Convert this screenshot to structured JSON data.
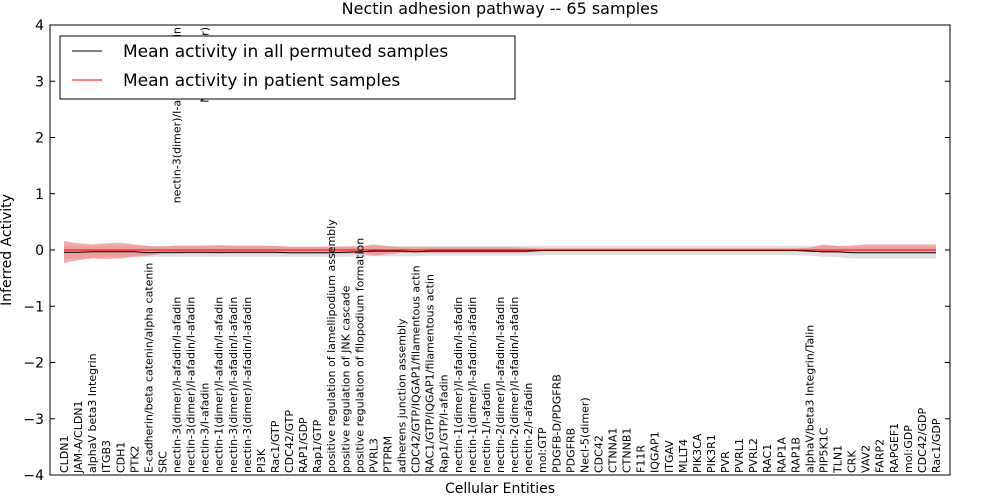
{
  "chart_data": {
    "type": "line",
    "title": "Nectin adhesion pathway -- 65 samples",
    "xlabel": "Cellular Entities",
    "ylabel": "Inferred Activity",
    "ylim": [
      -4,
      4
    ],
    "yticks": [
      -4,
      -3,
      -2,
      -1,
      0,
      1,
      2,
      3,
      4
    ],
    "ytick_labels": [
      "−4",
      "−3",
      "−2",
      "−1",
      "0",
      "1",
      "2",
      "3",
      "4"
    ],
    "legend_position": "top-left",
    "categories": [
      "CLDN1",
      "JAM-A/CLDN1",
      "alphaV beta3 Integrin",
      "ITGB3",
      "CDH1",
      "PTK2",
      "E-cadherin/beta catenin/alpha catenin",
      "SRC",
      "nectin-3(dimer)/I-afadin/I-afadin",
      "nectin-3(dimer)/I-afadin/I-afadin",
      "nectin-3/I-afadin",
      "nectin-1(dimer)/I-afadin/I-afadin",
      "nectin-3(dimer)/I-afadin/I-afadin",
      "nectin-3(dimer)/I-afadin/I-afadin",
      "PI3K",
      "Rac1/GTP",
      "CDC42/GTP",
      "RAP1/GDP",
      "Rap1/GTP",
      "positive regulation of lamellipodium assembly",
      "positive regulation of JNK cascade",
      "positive regulation of filopodium formation",
      "PVRL3",
      "PTPRM",
      "adherens junction assembly",
      "CDC42/GTP/IQGAP1/filamentous actin",
      "RAC1/GTP/IQGAP1/filamentous actin",
      "Rap1/GTP/I-afadin",
      "nectin-1(dimer)/I-afadin/I-afadin",
      "nectin-1(dimer)/I-afadin/I-afadin",
      "nectin-1/I-afadin",
      "nectin-2(dimer)/I-afadin/I-afadin",
      "nectin-2(dimer)/I-afadin/I-afadin",
      "nectin-2/I-afadin",
      "mol:GTP",
      "PDGFB-D/PDGFRB",
      "PDGFRB",
      "Necl-5(dimer)",
      "CDC42",
      "CTNNA1",
      "CTNNB1",
      "F11R",
      "IQGAP1",
      "ITGAV",
      "MLLT4",
      "PIK3CA",
      "PIK3R1",
      "PVR",
      "PVRL1",
      "PVRL2",
      "RAC1",
      "RAP1A",
      "RAP1B",
      "alphaV/beta3 Integrin/Talin",
      "PIP5K1C",
      "TLN1",
      "CRK",
      "VAV2",
      "FARP2",
      "RAPGEF1",
      "mol:GDP",
      "CDC42/GDP",
      "Rac1/GDP"
    ],
    "top_labels": [
      "nectin-3(dimer)/I-afadin/I-afadin",
      "Necl-5(dimer)"
    ],
    "series": [
      {
        "name": "Mean activity in all permuted samples",
        "color": "#000000",
        "fill": "#cccccc",
        "values": [
          -0.04,
          -0.04,
          -0.03,
          -0.03,
          -0.03,
          -0.03,
          -0.05,
          -0.04,
          -0.04,
          -0.04,
          -0.04,
          -0.04,
          -0.04,
          -0.04,
          -0.04,
          -0.04,
          -0.05,
          -0.05,
          -0.05,
          -0.05,
          -0.04,
          -0.03,
          -0.02,
          -0.02,
          -0.02,
          -0.03,
          -0.02,
          -0.02,
          -0.02,
          -0.02,
          -0.02,
          -0.02,
          -0.02,
          -0.02,
          -0.01,
          -0.01,
          -0.01,
          -0.01,
          -0.01,
          -0.01,
          -0.01,
          -0.01,
          -0.01,
          -0.01,
          -0.01,
          -0.01,
          -0.01,
          -0.01,
          -0.01,
          -0.01,
          -0.01,
          -0.01,
          -0.01,
          -0.02,
          -0.03,
          -0.03,
          -0.05,
          -0.05,
          -0.05,
          -0.05,
          -0.05,
          -0.05,
          -0.05
        ],
        "lower": [
          -0.15,
          -0.16,
          -0.14,
          -0.12,
          -0.12,
          -0.12,
          -0.13,
          -0.12,
          -0.12,
          -0.12,
          -0.12,
          -0.12,
          -0.12,
          -0.12,
          -0.12,
          -0.12,
          -0.12,
          -0.12,
          -0.12,
          -0.12,
          -0.12,
          -0.11,
          -0.11,
          -0.11,
          -0.11,
          -0.11,
          -0.1,
          -0.1,
          -0.1,
          -0.1,
          -0.1,
          -0.1,
          -0.1,
          -0.1,
          -0.09,
          -0.09,
          -0.09,
          -0.09,
          -0.09,
          -0.09,
          -0.09,
          -0.09,
          -0.09,
          -0.09,
          -0.09,
          -0.09,
          -0.09,
          -0.09,
          -0.09,
          -0.09,
          -0.09,
          -0.09,
          -0.09,
          -0.1,
          -0.12,
          -0.13,
          -0.15,
          -0.15,
          -0.15,
          -0.15,
          -0.15,
          -0.15,
          -0.15
        ],
        "upper": [
          0.08,
          0.08,
          0.08,
          0.08,
          0.08,
          0.08,
          0.07,
          0.07,
          0.07,
          0.07,
          0.07,
          0.07,
          0.07,
          0.07,
          0.07,
          0.07,
          0.06,
          0.06,
          0.06,
          0.06,
          0.07,
          0.07,
          0.07,
          0.07,
          0.07,
          0.07,
          0.07,
          0.07,
          0.07,
          0.07,
          0.07,
          0.07,
          0.07,
          0.07,
          0.07,
          0.07,
          0.07,
          0.07,
          0.07,
          0.07,
          0.07,
          0.07,
          0.07,
          0.07,
          0.07,
          0.07,
          0.07,
          0.07,
          0.07,
          0.07,
          0.07,
          0.07,
          0.07,
          0.07,
          0.07,
          0.07,
          0.06,
          0.06,
          0.06,
          0.06,
          0.06,
          0.06,
          0.06
        ]
      },
      {
        "name": "Mean activity in patient samples",
        "color": "#ff0000",
        "fill": "#f08080",
        "values": [
          0.0,
          0.0,
          0.0,
          0.0,
          0.0,
          0.0,
          0.0,
          0.0,
          0.0,
          0.0,
          0.0,
          0.0,
          0.0,
          0.0,
          0.0,
          0.0,
          0.0,
          0.0,
          0.0,
          0.0,
          0.0,
          0.0,
          0.0,
          0.0,
          0.0,
          0.0,
          0.0,
          0.0,
          0.0,
          0.0,
          0.0,
          0.0,
          0.0,
          0.0,
          0.0,
          0.0,
          0.0,
          0.0,
          0.0,
          0.0,
          0.0,
          0.0,
          0.0,
          0.0,
          0.0,
          0.0,
          0.0,
          0.0,
          0.0,
          0.0,
          0.0,
          0.0,
          0.0,
          0.0,
          0.0,
          0.0,
          0.0,
          0.0,
          0.0,
          0.0,
          0.0,
          0.0,
          0.0
        ],
        "lower": [
          -0.23,
          -0.18,
          -0.15,
          -0.16,
          -0.15,
          -0.12,
          -0.1,
          -0.07,
          -0.07,
          -0.06,
          -0.06,
          -0.07,
          -0.06,
          -0.06,
          -0.06,
          -0.06,
          -0.06,
          -0.06,
          -0.06,
          -0.06,
          -0.06,
          -0.06,
          -0.1,
          -0.08,
          -0.05,
          -0.05,
          -0.05,
          -0.05,
          -0.05,
          -0.05,
          -0.05,
          -0.05,
          -0.05,
          -0.04,
          -0.02,
          -0.02,
          -0.02,
          -0.02,
          -0.02,
          -0.02,
          -0.02,
          -0.02,
          -0.02,
          -0.02,
          -0.02,
          -0.02,
          -0.02,
          -0.02,
          -0.02,
          -0.02,
          -0.02,
          -0.02,
          -0.02,
          -0.03,
          -0.05,
          -0.05,
          -0.04,
          -0.04,
          -0.04,
          -0.04,
          -0.04,
          -0.04,
          -0.04
        ],
        "upper": [
          0.16,
          0.12,
          0.1,
          0.12,
          0.13,
          0.1,
          0.07,
          0.06,
          0.08,
          0.08,
          0.08,
          0.09,
          0.08,
          0.08,
          0.08,
          0.07,
          0.06,
          0.06,
          0.06,
          0.06,
          0.06,
          0.06,
          0.1,
          0.07,
          0.05,
          0.05,
          0.05,
          0.05,
          0.05,
          0.05,
          0.05,
          0.05,
          0.05,
          0.04,
          0.03,
          0.03,
          0.03,
          0.03,
          0.03,
          0.03,
          0.03,
          0.03,
          0.03,
          0.03,
          0.03,
          0.03,
          0.03,
          0.03,
          0.03,
          0.03,
          0.03,
          0.03,
          0.03,
          0.04,
          0.1,
          0.07,
          0.08,
          0.1,
          0.1,
          0.1,
          0.1,
          0.1,
          0.1
        ]
      }
    ]
  }
}
